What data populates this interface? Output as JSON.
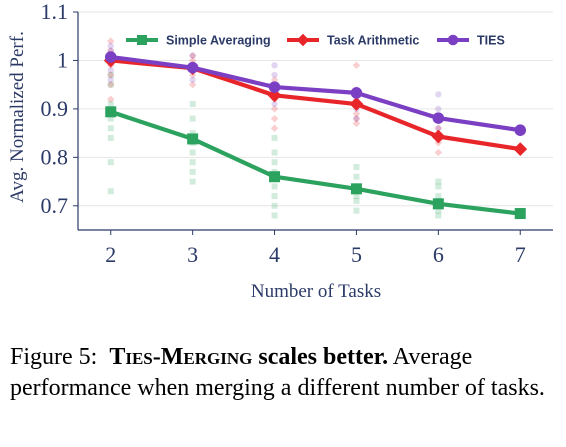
{
  "chart_data": {
    "type": "line",
    "xlabel": "Number of Tasks",
    "ylabel": "Avg. Normalized Perf.",
    "x": [
      2,
      3,
      4,
      5,
      6,
      7
    ],
    "xlim": [
      1.6,
      7.4
    ],
    "ylim": [
      0.65,
      1.1
    ],
    "yticks": [
      0.7,
      0.8,
      0.9,
      1.0,
      1.1
    ],
    "ytick_labels": [
      "0.7",
      "0.8",
      "0.9",
      "1",
      "1.1"
    ],
    "xticks": [
      2,
      3,
      4,
      5,
      6,
      7
    ],
    "xtick_labels": [
      "2",
      "3",
      "4",
      "5",
      "6",
      "7"
    ],
    "grid": "horizontal",
    "legend_position": "top",
    "series": [
      {
        "name": "Simple Averaging",
        "color": "#2ca25f",
        "marker": "square",
        "values": [
          0.894,
          0.838,
          0.76,
          0.735,
          0.704,
          0.684
        ],
        "scatter": [
          [
            2,
            0.73
          ],
          [
            2,
            0.79
          ],
          [
            2,
            0.84
          ],
          [
            2,
            0.86
          ],
          [
            2,
            0.88
          ],
          [
            2,
            0.91
          ],
          [
            2,
            0.95
          ],
          [
            2,
            0.97
          ],
          [
            3,
            0.75
          ],
          [
            3,
            0.77
          ],
          [
            3,
            0.79
          ],
          [
            3,
            0.81
          ],
          [
            3,
            0.83
          ],
          [
            3,
            0.85
          ],
          [
            3,
            0.88
          ],
          [
            3,
            0.91
          ],
          [
            4,
            0.68
          ],
          [
            4,
            0.7
          ],
          [
            4,
            0.72
          ],
          [
            4,
            0.74
          ],
          [
            4,
            0.77
          ],
          [
            4,
            0.79
          ],
          [
            4,
            0.81
          ],
          [
            4,
            0.84
          ],
          [
            5,
            0.69
          ],
          [
            5,
            0.71
          ],
          [
            5,
            0.72
          ],
          [
            5,
            0.73
          ],
          [
            5,
            0.74
          ],
          [
            5,
            0.76
          ],
          [
            5,
            0.78
          ],
          [
            6,
            0.68
          ],
          [
            6,
            0.69
          ],
          [
            6,
            0.7
          ],
          [
            6,
            0.71
          ],
          [
            6,
            0.72
          ],
          [
            6,
            0.74
          ],
          [
            6,
            0.75
          ]
        ]
      },
      {
        "name": "Task Arithmetic",
        "color": "#e8262a",
        "marker": "diamond",
        "values": [
          1.0,
          0.984,
          0.928,
          0.91,
          0.843,
          0.817
        ],
        "scatter": [
          [
            2,
            0.92
          ],
          [
            2,
            0.95
          ],
          [
            2,
            0.97
          ],
          [
            2,
            0.99
          ],
          [
            2,
            1.01
          ],
          [
            2,
            1.02
          ],
          [
            2,
            1.04
          ],
          [
            3,
            0.95
          ],
          [
            3,
            0.97
          ],
          [
            3,
            0.98
          ],
          [
            3,
            0.99
          ],
          [
            3,
            1.0
          ],
          [
            3,
            1.01
          ],
          [
            4,
            0.86
          ],
          [
            4,
            0.88
          ],
          [
            4,
            0.9
          ],
          [
            4,
            0.92
          ],
          [
            4,
            0.94
          ],
          [
            4,
            0.96
          ],
          [
            5,
            0.87
          ],
          [
            5,
            0.88
          ],
          [
            5,
            0.89
          ],
          [
            5,
            0.91
          ],
          [
            5,
            0.93
          ],
          [
            5,
            0.99
          ],
          [
            6,
            0.81
          ],
          [
            6,
            0.83
          ],
          [
            6,
            0.86
          ]
        ]
      },
      {
        "name": "TIES",
        "color": "#7b3fc4",
        "marker": "circle",
        "values": [
          1.007,
          0.985,
          0.945,
          0.933,
          0.881,
          0.856
        ],
        "scatter": [
          [
            2,
            0.96
          ],
          [
            2,
            0.98
          ],
          [
            2,
            1.0
          ],
          [
            2,
            1.02
          ],
          [
            2,
            1.03
          ],
          [
            3,
            0.96
          ],
          [
            3,
            0.98
          ],
          [
            3,
            0.99
          ],
          [
            3,
            1.01
          ],
          [
            4,
            0.91
          ],
          [
            4,
            0.93
          ],
          [
            4,
            0.95
          ],
          [
            4,
            0.97
          ],
          [
            4,
            0.99
          ],
          [
            5,
            0.88
          ],
          [
            5,
            0.9
          ],
          [
            5,
            0.92
          ],
          [
            5,
            0.94
          ],
          [
            6,
            0.86
          ],
          [
            6,
            0.9
          ],
          [
            6,
            0.93
          ]
        ]
      }
    ]
  },
  "caption": {
    "figure_number": "Figure 5:",
    "title_emph": "Ties-Merging",
    "title_rest": " scales better.",
    "body": " Average performance when merging a different number of tasks."
  }
}
